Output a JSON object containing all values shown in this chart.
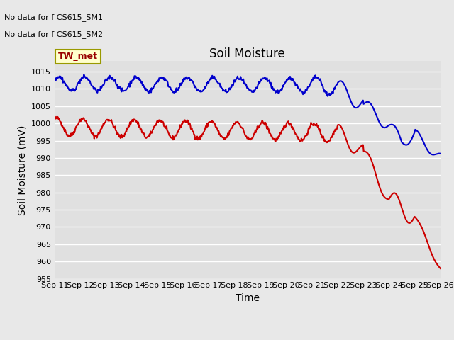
{
  "title": "Soil Moisture",
  "ylabel": "Soil Moisture (mV)",
  "xlabel": "Time",
  "ylim": [
    955,
    1018
  ],
  "yticks": [
    955,
    960,
    965,
    970,
    975,
    980,
    985,
    990,
    995,
    1000,
    1005,
    1010,
    1015
  ],
  "annotations": [
    "No data for f CS615_SM1",
    "No data for f CS615_SM2"
  ],
  "legend_box_label": "TW_met",
  "legend_box_color": "#ffffcc",
  "legend_box_border": "#999900",
  "legend_box_text_color": "#990000",
  "sm1_color": "#cc0000",
  "sm2_color": "#0000cc",
  "background_color": "#e8e8e8",
  "axes_background": "#e0e0e0",
  "x_tick_labels": [
    "Sep 11",
    "Sep 12",
    "Sep 13",
    "Sep 14",
    "Sep 15",
    "Sep 16",
    "Sep 17",
    "Sep 18",
    "Sep 19",
    "Sep 20",
    "Sep 21",
    "Sep 22",
    "Sep 23",
    "Sep 24",
    "Sep 25",
    "Sep 26"
  ],
  "grid_color": "#ffffff",
  "title_fontsize": 12,
  "axes_label_fontsize": 10,
  "tick_fontsize": 8,
  "line_width": 1.5,
  "legend_fontsize": 10
}
